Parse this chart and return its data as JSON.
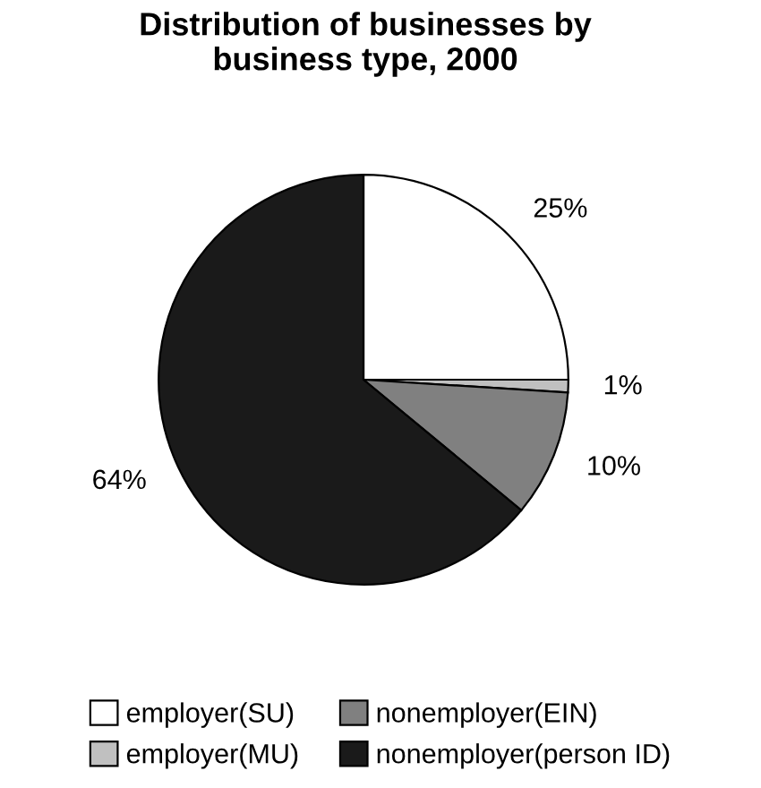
{
  "chart_data": {
    "type": "pie",
    "title": "Distribution of businesses by\nbusiness type, 2000",
    "categories": [
      "employer(SU)",
      "employer(MU)",
      "nonemployer(EIN)",
      "nonemployer(person ID)"
    ],
    "values": [
      25,
      1,
      10,
      64
    ],
    "colors": [
      "#ffffff",
      "#c0c0c0",
      "#808080",
      "#1a1a1a"
    ],
    "value_labels": [
      "25%",
      "1%",
      "10%",
      "64%"
    ],
    "legend": "bottom"
  }
}
